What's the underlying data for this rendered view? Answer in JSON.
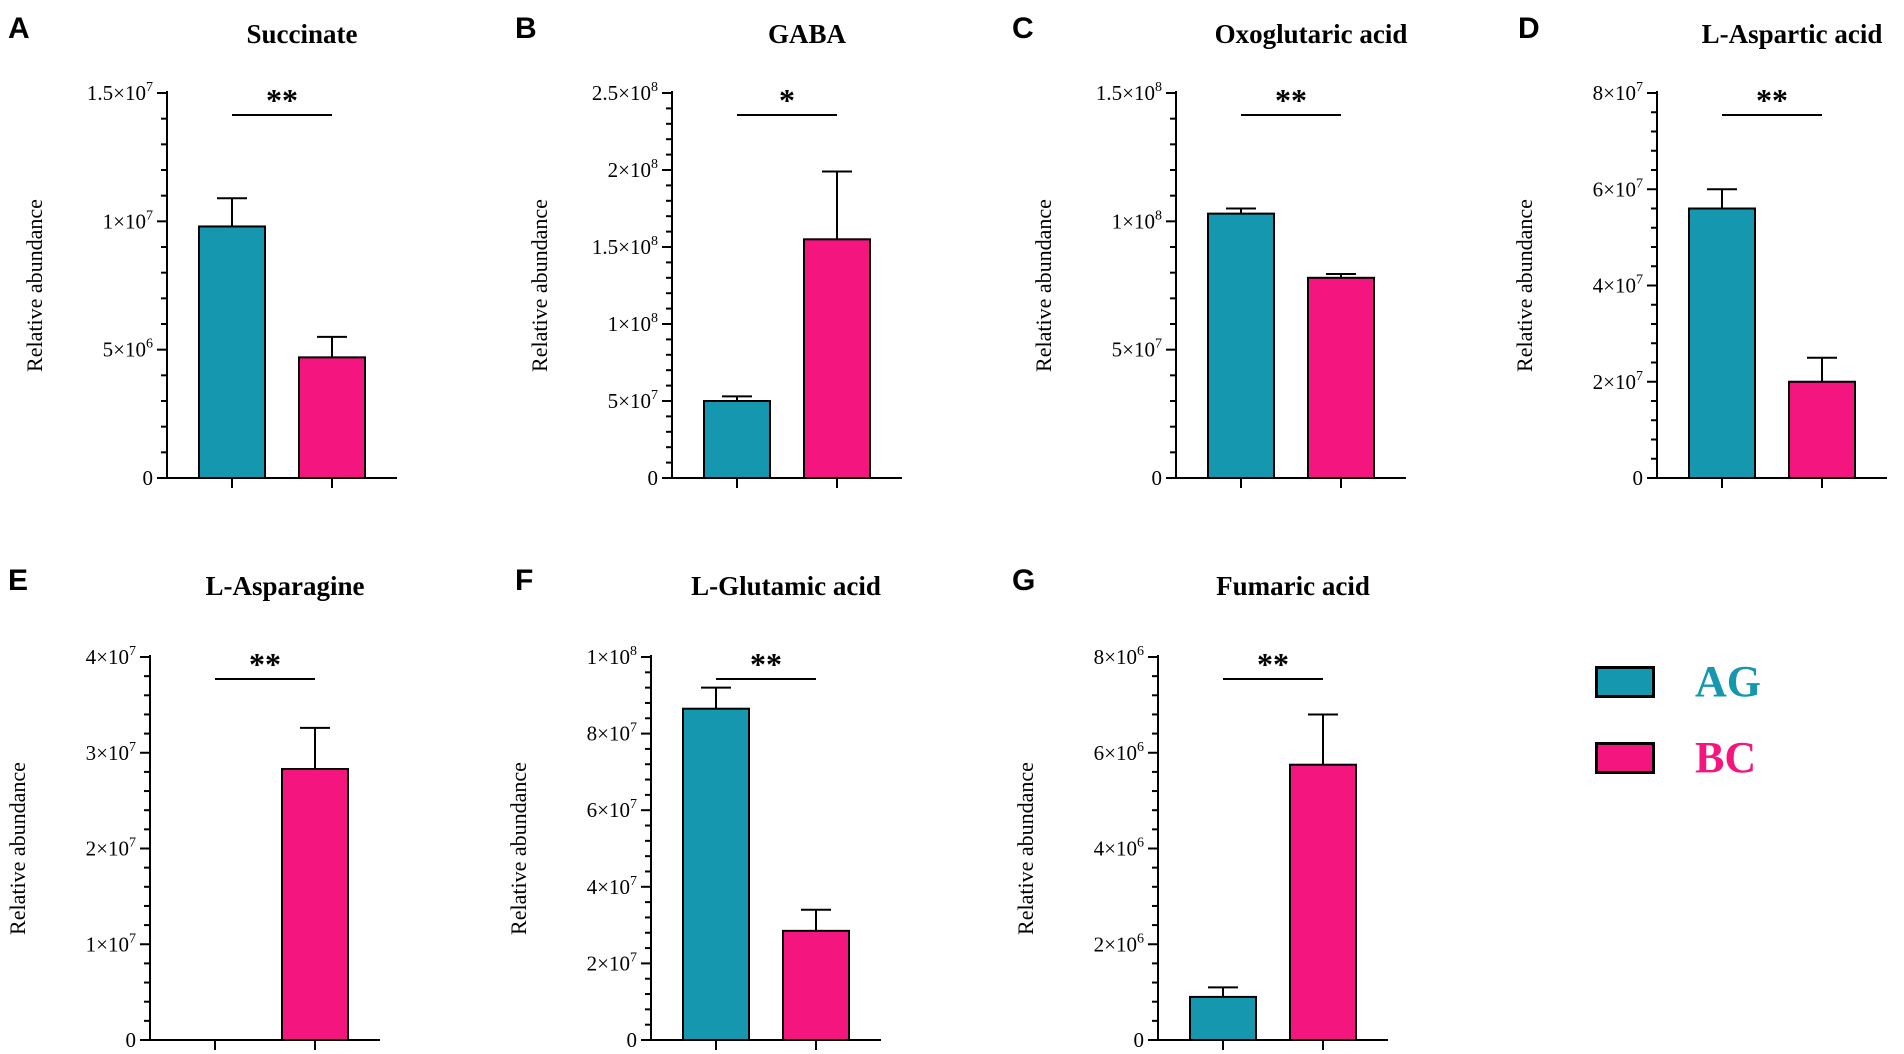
{
  "colors": {
    "AG": "#1597b0",
    "BC": "#f4157f",
    "axis": "#000000"
  },
  "legend": [
    {
      "label": "AG",
      "color": "#1597b0"
    },
    {
      "label": "BC",
      "color": "#f4157f"
    }
  ],
  "chart_data": [
    {
      "type": "bar",
      "panel_letter": "A",
      "title": "Succinate",
      "ylabel": "Relative abundance",
      "categories": [
        "AG",
        "BC"
      ],
      "values": [
        9800000,
        4700000
      ],
      "errors": [
        1100000,
        800000
      ],
      "ylim": [
        0,
        15000000
      ],
      "ticks": [
        0,
        5000000,
        10000000,
        15000000
      ],
      "tick_labels": [
        {
          "m": "0",
          "e": ""
        },
        {
          "m": "5×10",
          "e": "6"
        },
        {
          "m": "1×10",
          "e": "7"
        },
        {
          "m": "1.5×10",
          "e": "7"
        }
      ],
      "significance": "**"
    },
    {
      "type": "bar",
      "panel_letter": "B",
      "title": "GABA",
      "ylabel": "Relative abundance",
      "categories": [
        "AG",
        "BC"
      ],
      "values": [
        50000000,
        155000000
      ],
      "errors": [
        3000000,
        44000000
      ],
      "ylim": [
        0,
        250000000
      ],
      "ticks": [
        0,
        50000000,
        100000000,
        150000000,
        200000000,
        250000000
      ],
      "tick_labels": [
        {
          "m": "0",
          "e": ""
        },
        {
          "m": "5×10",
          "e": "7"
        },
        {
          "m": "1×10",
          "e": "8"
        },
        {
          "m": "1.5×10",
          "e": "8"
        },
        {
          "m": "2×10",
          "e": "8"
        },
        {
          "m": "2.5×10",
          "e": "8"
        }
      ],
      "significance": "*"
    },
    {
      "type": "bar",
      "panel_letter": "C",
      "title": "Oxoglutaric acid",
      "ylabel": "Relative abundance",
      "categories": [
        "AG",
        "BC"
      ],
      "values": [
        103000000,
        78000000
      ],
      "errors": [
        2000000,
        1500000
      ],
      "ylim": [
        0,
        150000000
      ],
      "ticks": [
        0,
        50000000,
        100000000,
        150000000
      ],
      "tick_labels": [
        {
          "m": "0",
          "e": ""
        },
        {
          "m": "5×10",
          "e": "7"
        },
        {
          "m": "1×10",
          "e": "8"
        },
        {
          "m": "1.5×10",
          "e": "8"
        }
      ],
      "significance": "**"
    },
    {
      "type": "bar",
      "panel_letter": "D",
      "title": "L-Aspartic acid",
      "ylabel": "Relative abundance",
      "categories": [
        "AG",
        "BC"
      ],
      "values": [
        56000000,
        20000000
      ],
      "errors": [
        4000000,
        5000000
      ],
      "ylim": [
        0,
        80000000
      ],
      "ticks": [
        0,
        20000000,
        40000000,
        60000000,
        80000000
      ],
      "tick_labels": [
        {
          "m": "0",
          "e": ""
        },
        {
          "m": "2×10",
          "e": "7"
        },
        {
          "m": "4×10",
          "e": "7"
        },
        {
          "m": "6×10",
          "e": "7"
        },
        {
          "m": "8×10",
          "e": "7"
        }
      ],
      "significance": "**"
    },
    {
      "type": "bar",
      "panel_letter": "E",
      "title": "L-Asparagine",
      "ylabel": "Relative abundance",
      "categories": [
        "AG",
        "BC"
      ],
      "values": [
        0,
        28300000
      ],
      "errors": [
        0,
        4300000
      ],
      "ylim": [
        0,
        40000000
      ],
      "ticks": [
        0,
        10000000,
        20000000,
        30000000,
        40000000
      ],
      "tick_labels": [
        {
          "m": "0",
          "e": ""
        },
        {
          "m": "1×10",
          "e": "7"
        },
        {
          "m": "2×10",
          "e": "7"
        },
        {
          "m": "3×10",
          "e": "7"
        },
        {
          "m": "4×10",
          "e": "7"
        }
      ],
      "significance": "**"
    },
    {
      "type": "bar",
      "panel_letter": "F",
      "title": "L-Glutamic acid",
      "ylabel": "Relative abundance",
      "categories": [
        "AG",
        "BC"
      ],
      "values": [
        86500000,
        28500000
      ],
      "errors": [
        5500000,
        5500000
      ],
      "ylim": [
        0,
        100000000
      ],
      "ticks": [
        0,
        20000000,
        40000000,
        60000000,
        80000000,
        100000000
      ],
      "tick_labels": [
        {
          "m": "0",
          "e": ""
        },
        {
          "m": "2×10",
          "e": "7"
        },
        {
          "m": "4×10",
          "e": "7"
        },
        {
          "m": "6×10",
          "e": "7"
        },
        {
          "m": "8×10",
          "e": "7"
        },
        {
          "m": "1×10",
          "e": "8"
        }
      ],
      "significance": "**"
    },
    {
      "type": "bar",
      "panel_letter": "G",
      "title": "Fumaric acid",
      "ylabel": "Relative abundance",
      "categories": [
        "AG",
        "BC"
      ],
      "values": [
        900000,
        5750000
      ],
      "errors": [
        200000,
        1050000
      ],
      "ylim": [
        0,
        8000000
      ],
      "ticks": [
        0,
        2000000,
        4000000,
        6000000,
        8000000
      ],
      "tick_labels": [
        {
          "m": "0",
          "e": ""
        },
        {
          "m": "2×10",
          "e": "6"
        },
        {
          "m": "4×10",
          "e": "6"
        },
        {
          "m": "6×10",
          "e": "6"
        },
        {
          "m": "8×10",
          "e": "6"
        }
      ],
      "significance": "**"
    }
  ]
}
